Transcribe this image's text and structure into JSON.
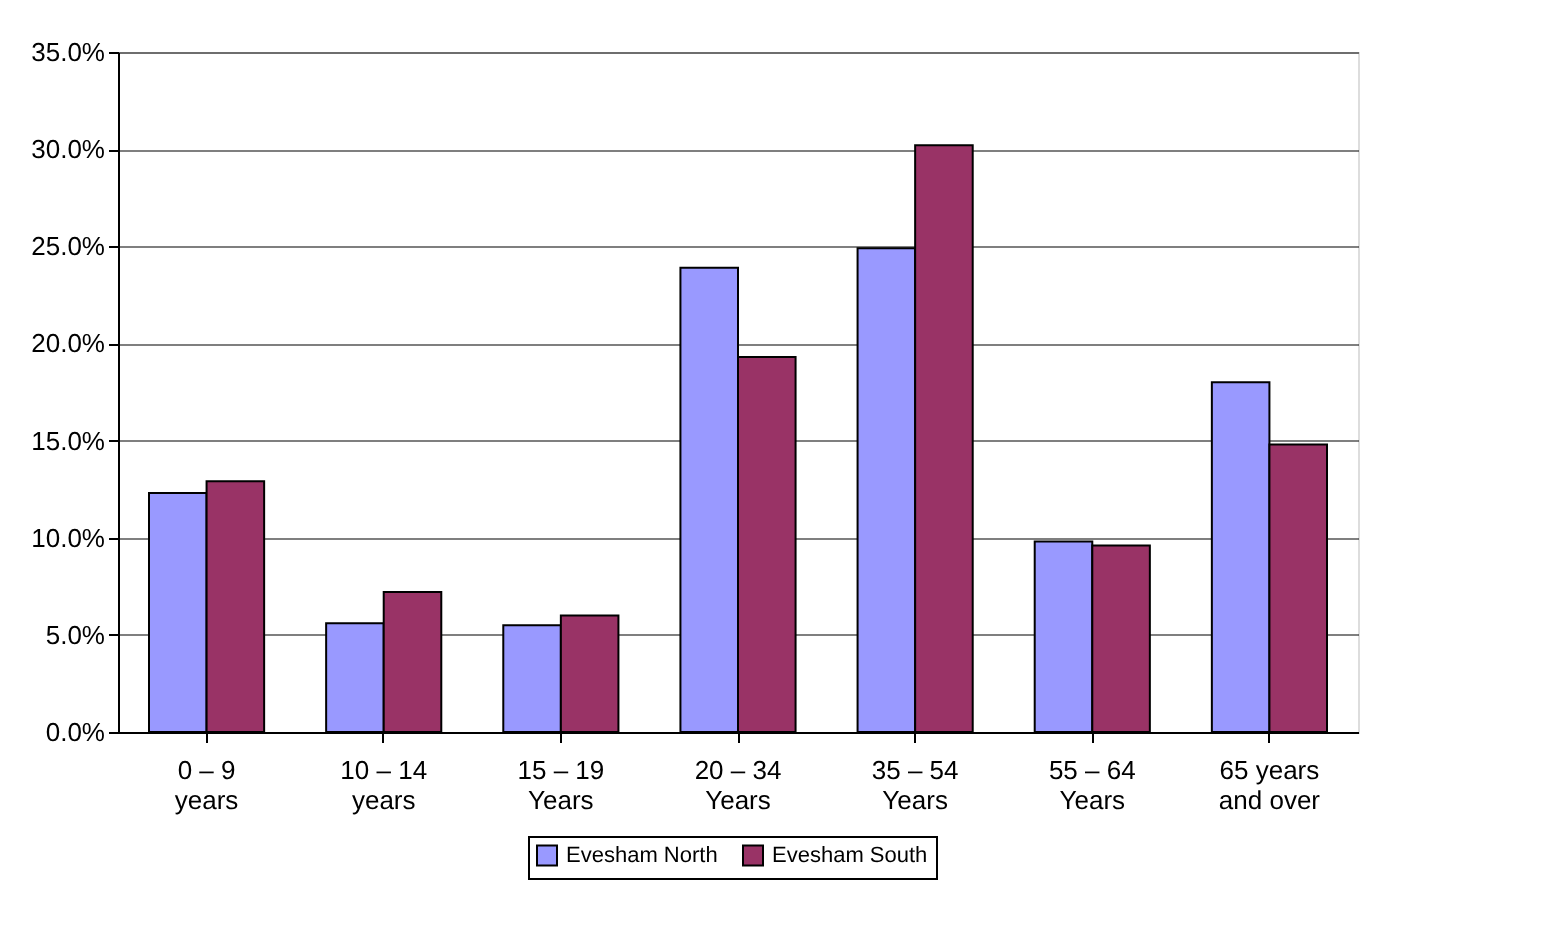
{
  "chart_data": {
    "type": "bar",
    "categories": [
      "0 – 9\nyears",
      "10 – 14\nyears",
      "15 – 19\nYears",
      "20 – 34\nYears",
      "35 – 54\nYears",
      "55 – 64\nYears",
      "65 years\nand over"
    ],
    "series": [
      {
        "name": "Evesham North",
        "color": "#9999ff",
        "values": [
          12.3,
          5.6,
          5.5,
          23.9,
          24.9,
          9.8,
          18.0
        ]
      },
      {
        "name": "Evesham South",
        "color": "#993366",
        "values": [
          12.9,
          7.2,
          6.0,
          19.3,
          30.2,
          9.6,
          14.8
        ]
      }
    ],
    "ylim": [
      0,
      35
    ],
    "yticks": [
      {
        "value": 0,
        "label": "0.0%"
      },
      {
        "value": 5,
        "label": "5.0%"
      },
      {
        "value": 10,
        "label": "10.0%"
      },
      {
        "value": 15,
        "label": "15.0%"
      },
      {
        "value": 20,
        "label": "20.0%"
      },
      {
        "value": 25,
        "label": "25.0%"
      },
      {
        "value": 30,
        "label": "30.0%"
      },
      {
        "value": 35,
        "label": "35.0%"
      }
    ],
    "grid": "y",
    "legend": "bottom"
  }
}
